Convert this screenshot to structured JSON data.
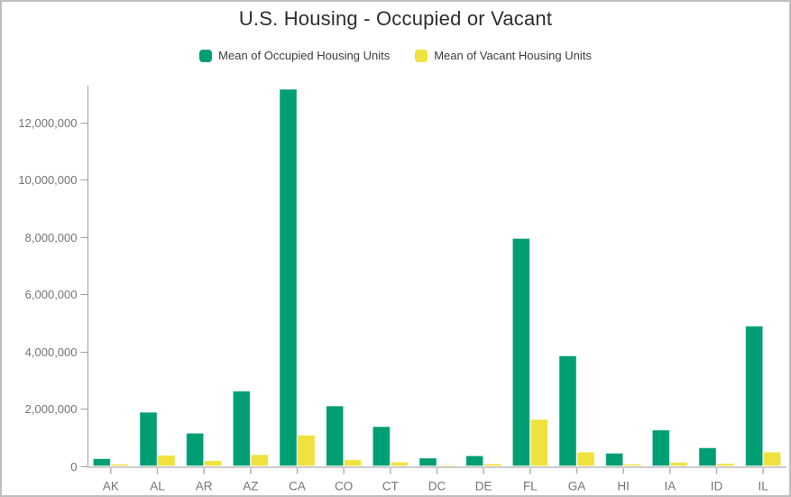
{
  "page": {
    "title": "U.S. Housing - Occupied or Vacant"
  },
  "legend": {
    "items": [
      {
        "label": "Mean of Occupied Housing Units",
        "color": "#009E73"
      },
      {
        "label": "Mean of Vacant Housing Units",
        "color": "#EFE23C"
      }
    ]
  },
  "chart_data": {
    "type": "bar",
    "title": "U.S. Housing - Occupied or Vacant",
    "categories": [
      "AK",
      "AL",
      "AR",
      "AZ",
      "CA",
      "CO",
      "CT",
      "DC",
      "DE",
      "FL",
      "GA",
      "HI",
      "IA",
      "ID",
      "IL"
    ],
    "series": [
      {
        "name": "Mean of Occupied Housing Units",
        "color": "#009E73",
        "values": [
          250000,
          1870000,
          1140000,
          2610000,
          13150000,
          2090000,
          1370000,
          270000,
          350000,
          7940000,
          3840000,
          440000,
          1250000,
          630000,
          4880000
        ]
      },
      {
        "name": "Mean of Vacant Housing Units",
        "color": "#EFE23C",
        "values": [
          60000,
          370000,
          180000,
          390000,
          1070000,
          210000,
          130000,
          30000,
          70000,
          1620000,
          480000,
          60000,
          120000,
          80000,
          480000
        ]
      }
    ],
    "xlabel": "",
    "ylabel": "",
    "ylim": [
      0,
      13400000
    ],
    "yticks": [
      0,
      2000000,
      4000000,
      6000000,
      8000000,
      10000000,
      12000000
    ],
    "ytick_labels": [
      "0",
      "2,000,000",
      "4,000,000",
      "6,000,000",
      "8,000,000",
      "10,000,000",
      "12,000,000"
    ],
    "grid": false,
    "legend_position": "top"
  },
  "style": {
    "axis_line_color": "#9e9e9e",
    "x_axis_line_color": "#cccccc",
    "tick_color": "#b3b3b3",
    "axis_label_color": "#70757a",
    "title_color": "#2e2e2e"
  }
}
